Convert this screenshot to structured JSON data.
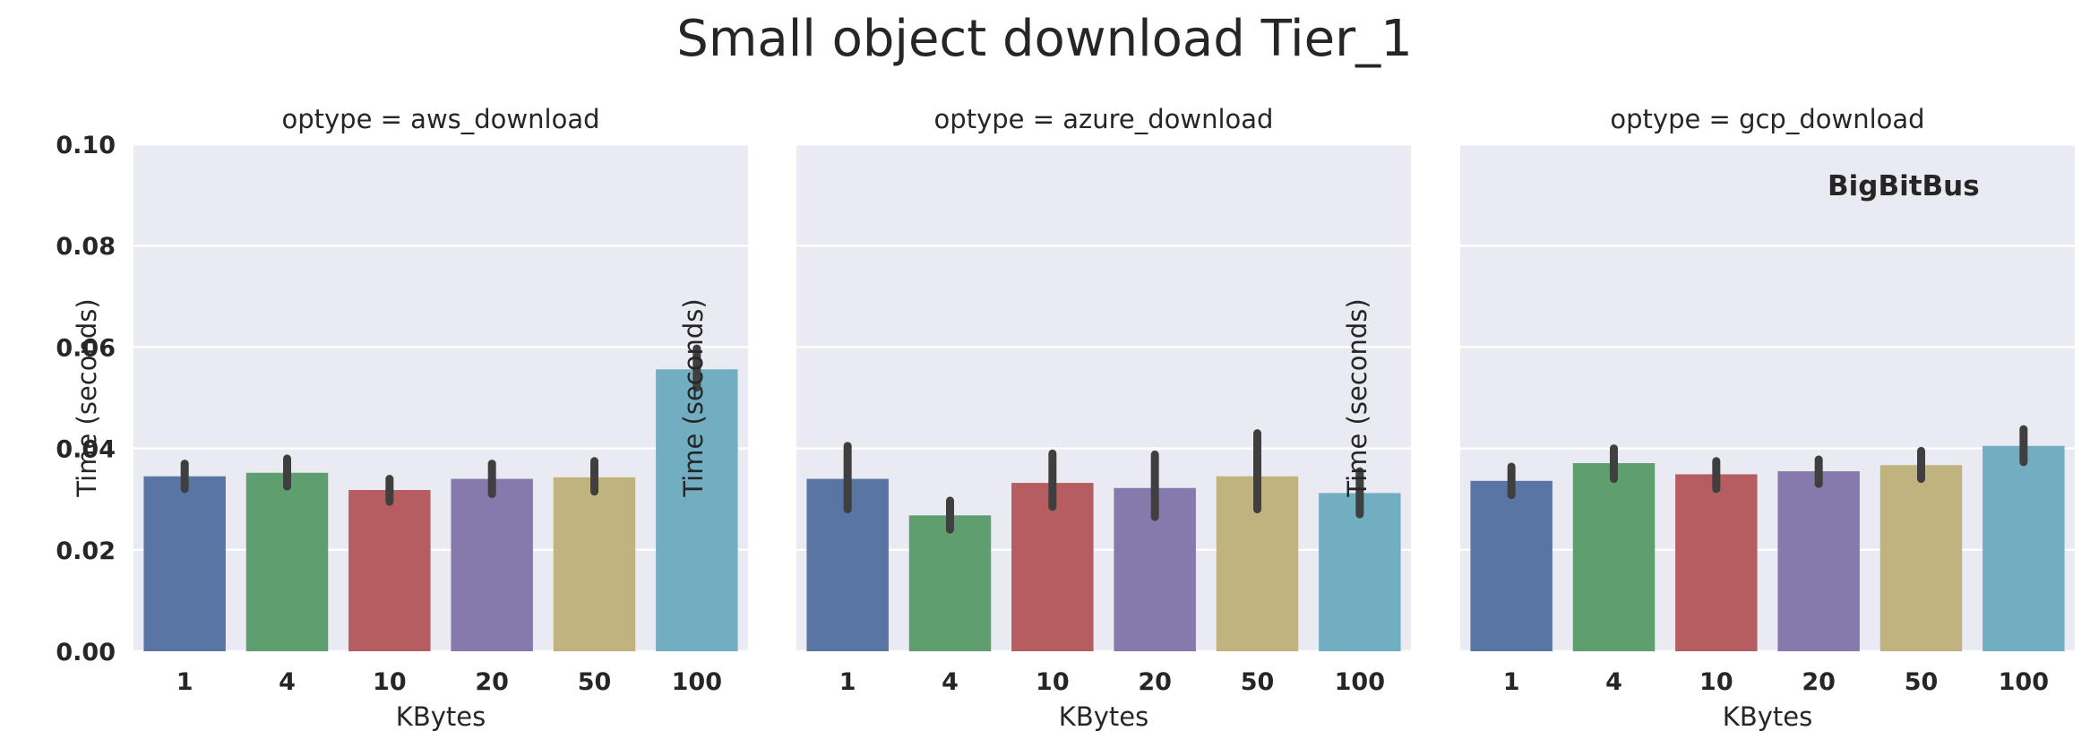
{
  "chart_data": {
    "type": "bar",
    "title": "Small object download Tier_1",
    "xlabel": "KBytes",
    "ylabel": "Time (seconds)",
    "ylim": [
      0,
      0.1
    ],
    "yticks": [
      "0.00",
      "0.02",
      "0.04",
      "0.06",
      "0.08",
      "0.10"
    ],
    "categories": [
      "1",
      "4",
      "10",
      "20",
      "50",
      "100"
    ],
    "grid": true,
    "watermark": "BigBitBus",
    "colors": [
      "#5875a4",
      "#5f9e6e",
      "#b55d60",
      "#857aab",
      "#c1b37f",
      "#72aec2"
    ],
    "background": "#eaeaf2",
    "errorbar_color": "#3f3f3f",
    "facets": [
      {
        "title": "optype = aws_download",
        "values": [
          0.0345,
          0.0352,
          0.0318,
          0.034,
          0.0343,
          0.0556
        ],
        "err_low": [
          0.032,
          0.0325,
          0.0295,
          0.031,
          0.0315,
          0.052
        ],
        "err_high": [
          0.037,
          0.038,
          0.034,
          0.037,
          0.0375,
          0.0597
        ]
      },
      {
        "title": "optype = azure_download",
        "values": [
          0.034,
          0.0268,
          0.0332,
          0.0322,
          0.0345,
          0.0312
        ],
        "err_low": [
          0.028,
          0.024,
          0.0285,
          0.0265,
          0.028,
          0.027
        ],
        "err_high": [
          0.0405,
          0.0297,
          0.039,
          0.0388,
          0.043,
          0.0355
        ]
      },
      {
        "title": "optype = gcp_download",
        "values": [
          0.0336,
          0.0371,
          0.0349,
          0.0355,
          0.0367,
          0.0405
        ],
        "err_low": [
          0.0308,
          0.034,
          0.032,
          0.033,
          0.034,
          0.0373
        ],
        "err_high": [
          0.0364,
          0.04,
          0.0375,
          0.0378,
          0.0395,
          0.0438
        ]
      }
    ]
  }
}
